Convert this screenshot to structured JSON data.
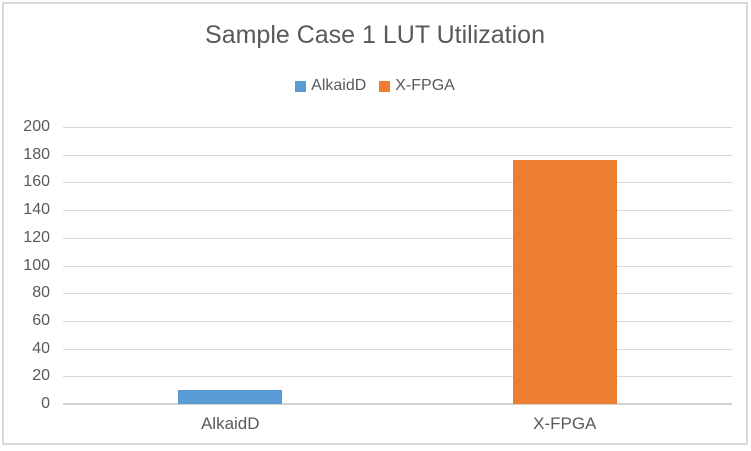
{
  "chart_data": {
    "type": "bar",
    "title": "Sample Case 1 LUT Utilization",
    "categories": [
      "AlkaidD",
      "X-FPGA"
    ],
    "values": [
      10,
      176
    ],
    "bar_colors": [
      "#5B9BD5",
      "#ED7D31"
    ],
    "legend": [
      {
        "label": "AlkaidD",
        "color": "#5B9BD5"
      },
      {
        "label": "X-FPGA",
        "color": "#ED7D31"
      }
    ],
    "legend_position": "top",
    "xlabel": "",
    "ylabel": "",
    "ylim": [
      0,
      200
    ],
    "yticks": [
      0,
      20,
      40,
      60,
      80,
      100,
      120,
      140,
      160,
      180,
      200
    ],
    "grid": true,
    "colors": {
      "text": "#595959",
      "gridline": "#D9D9D9",
      "axis_line": "#D2D2D2",
      "frame_border": "#D9D9D9",
      "background": "#FFFFFF"
    }
  }
}
